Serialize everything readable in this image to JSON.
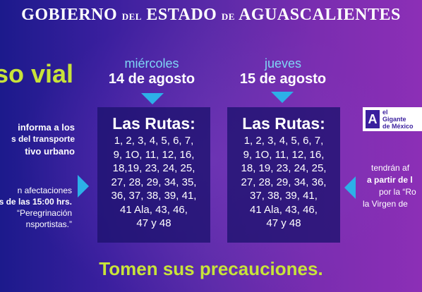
{
  "header": {
    "part1": "Gobierno",
    "part2": "del",
    "part3": "Estado",
    "part4": "de",
    "part5": "Aguascalientes"
  },
  "aviso": "so vial",
  "left": {
    "line1": "informa a los",
    "line2": "s del transporte",
    "line3": "tivo urbano",
    "line4": "n afectaciones",
    "line5": "s de las 15:00 hrs.",
    "line6": "“Peregrinación",
    "line7": "nsportistas.”"
  },
  "days": [
    {
      "name": "miércoles",
      "date": "14 de agosto"
    },
    {
      "name": "jueves",
      "date": "15 de agosto"
    }
  ],
  "cards": [
    {
      "title": "Las Rutas:",
      "lines": [
        "1, 2, 3, 4, 5, 6, 7,",
        "9, 1O, 11, 12, 16,",
        "18,19, 23, 24, 25,",
        "27, 28, 29, 34, 35,",
        "36, 37, 38, 39, 41,",
        "41 Ala, 43, 46,",
        "47 y 48"
      ]
    },
    {
      "title": "Las Rutas:",
      "lines": [
        "1, 2, 3, 4, 5, 6, 7,",
        "9, 1O, 11, 12, 16,",
        "18, 19, 23, 24, 25,",
        "27, 28, 29, 34, 36,",
        "37, 38, 39, 41,",
        "41 Ala, 43, 46,",
        "47 y 48"
      ]
    }
  ],
  "logo": {
    "mark": "A",
    "line1": "el",
    "line2": "Gigante",
    "line3": "de México"
  },
  "right": {
    "line1": "tendrán af",
    "line2": "a partir de l",
    "line3": "por la “Ro",
    "line4": "la Virgen de"
  },
  "footer": "Tomen sus precauciones.",
  "colors": {
    "accent": "#c8e33a",
    "arrow": "#2cb0e8",
    "card": "#1c126e"
  }
}
